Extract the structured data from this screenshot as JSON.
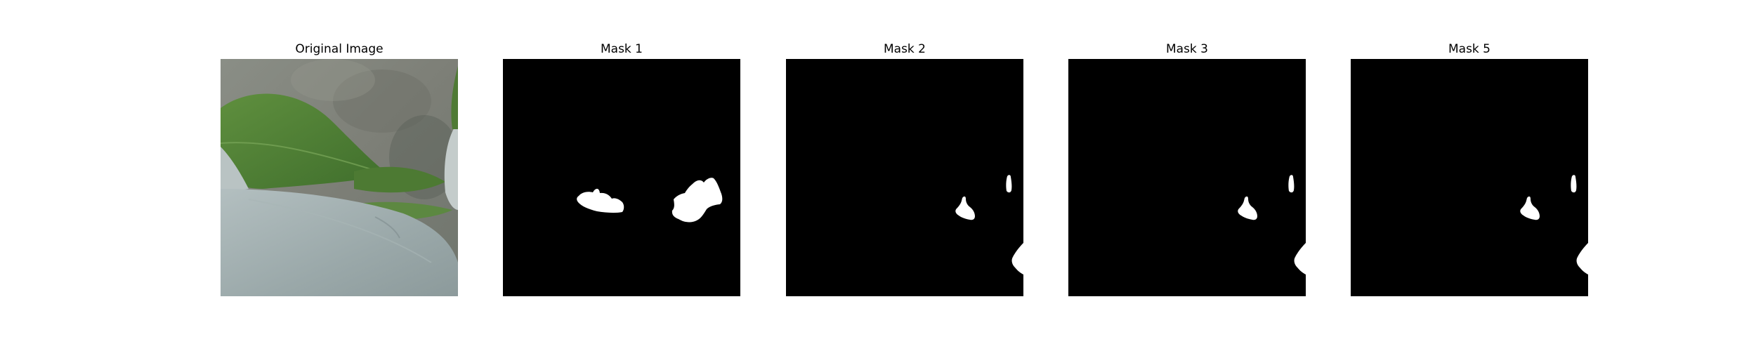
{
  "panels": [
    {
      "title": "Original Image",
      "kind": "photo"
    },
    {
      "title": "Mask 1",
      "kind": "mask"
    },
    {
      "title": "Mask 2",
      "kind": "mask"
    },
    {
      "title": "Mask 3",
      "kind": "mask"
    },
    {
      "title": "Mask 5",
      "kind": "mask"
    }
  ],
  "colors": {
    "background": "#ffffff",
    "mask_background": "#000000",
    "mask_foreground": "#ffffff"
  }
}
